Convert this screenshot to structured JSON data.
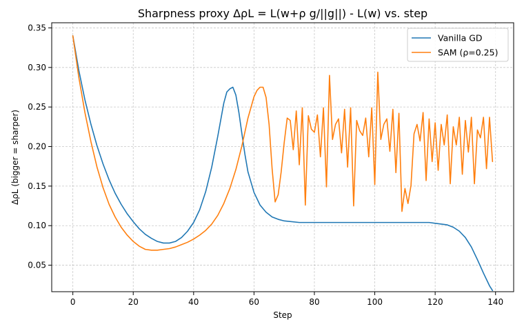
{
  "chart_data": {
    "type": "line",
    "title": "Sharpness proxy ΔρL = L(w+ρ g/||g||) - L(w) vs. step",
    "xlabel": "Step",
    "ylabel": "ΔρL (bigger = sharper)",
    "xlim": [
      -7,
      146
    ],
    "ylim": [
      0.0165,
      0.3565
    ],
    "xticks": [
      "0",
      "20",
      "40",
      "60",
      "80",
      "100",
      "120",
      "140"
    ],
    "yticks": [
      "0.05",
      "0.10",
      "0.15",
      "0.20",
      "0.25",
      "0.30",
      "0.35"
    ],
    "grid": true,
    "legend_position": "upper right",
    "series": [
      {
        "name": "Vanilla GD",
        "color": "#1f77b4",
        "x": [
          0,
          2,
          4,
          6,
          8,
          10,
          12,
          14,
          16,
          18,
          20,
          22,
          24,
          26,
          28,
          30,
          32,
          34,
          36,
          38,
          40,
          42,
          44,
          46,
          48,
          50,
          51,
          52,
          53,
          54,
          55,
          56,
          57,
          58,
          60,
          62,
          64,
          66,
          68,
          70,
          75,
          80,
          90,
          100,
          110,
          115,
          118,
          120,
          122,
          124,
          126,
          128,
          130,
          132,
          134,
          136,
          138,
          139
        ],
        "y": [
          0.34,
          0.296,
          0.259,
          0.228,
          0.201,
          0.178,
          0.158,
          0.141,
          0.127,
          0.115,
          0.105,
          0.096,
          0.089,
          0.084,
          0.08,
          0.078,
          0.078,
          0.08,
          0.085,
          0.093,
          0.104,
          0.12,
          0.143,
          0.174,
          0.213,
          0.255,
          0.269,
          0.273,
          0.275,
          0.265,
          0.243,
          0.216,
          0.19,
          0.168,
          0.142,
          0.126,
          0.117,
          0.111,
          0.108,
          0.106,
          0.104,
          0.104,
          0.104,
          0.104,
          0.104,
          0.104,
          0.104,
          0.103,
          0.102,
          0.101,
          0.098,
          0.093,
          0.085,
          0.073,
          0.057,
          0.04,
          0.024,
          0.018
        ]
      },
      {
        "name": "SAM (ρ=0.25)",
        "color": "#ff7f0e",
        "x": [
          0,
          2,
          4,
          6,
          8,
          10,
          12,
          14,
          16,
          18,
          20,
          22,
          24,
          26,
          28,
          30,
          32,
          34,
          36,
          38,
          40,
          42,
          44,
          46,
          48,
          50,
          52,
          54,
          56,
          58,
          60,
          61,
          62,
          63,
          64,
          65,
          66,
          67,
          68,
          69,
          70,
          71,
          72,
          73,
          74,
          75,
          76,
          77,
          78,
          79,
          80,
          81,
          82,
          83,
          84,
          85,
          86,
          87,
          88,
          89,
          90,
          91,
          92,
          93,
          94,
          95,
          96,
          97,
          98,
          99,
          100,
          101,
          102,
          103,
          104,
          105,
          106,
          107,
          108,
          109,
          110,
          111,
          112,
          113,
          114,
          115,
          116,
          117,
          118,
          119,
          120,
          121,
          122,
          123,
          124,
          125,
          126,
          127,
          128,
          129,
          130,
          131,
          132,
          133,
          134,
          135,
          136,
          137,
          138,
          139
        ],
        "y": [
          0.34,
          0.287,
          0.243,
          0.206,
          0.174,
          0.148,
          0.127,
          0.111,
          0.098,
          0.088,
          0.08,
          0.074,
          0.07,
          0.069,
          0.069,
          0.07,
          0.071,
          0.073,
          0.076,
          0.079,
          0.083,
          0.088,
          0.094,
          0.102,
          0.113,
          0.128,
          0.147,
          0.171,
          0.201,
          0.236,
          0.263,
          0.271,
          0.275,
          0.275,
          0.262,
          0.228,
          0.172,
          0.13,
          0.139,
          0.168,
          0.205,
          0.236,
          0.233,
          0.196,
          0.245,
          0.177,
          0.249,
          0.126,
          0.239,
          0.222,
          0.218,
          0.24,
          0.187,
          0.249,
          0.149,
          0.29,
          0.209,
          0.228,
          0.235,
          0.192,
          0.247,
          0.174,
          0.249,
          0.125,
          0.233,
          0.22,
          0.214,
          0.236,
          0.187,
          0.249,
          0.152,
          0.294,
          0.209,
          0.228,
          0.235,
          0.194,
          0.247,
          0.167,
          0.242,
          0.118,
          0.147,
          0.128,
          0.151,
          0.216,
          0.228,
          0.207,
          0.243,
          0.157,
          0.235,
          0.181,
          0.23,
          0.17,
          0.228,
          0.202,
          0.24,
          0.153,
          0.225,
          0.202,
          0.237,
          0.165,
          0.233,
          0.193,
          0.237,
          0.153,
          0.221,
          0.211,
          0.237,
          0.172,
          0.237,
          0.181
        ]
      }
    ]
  }
}
